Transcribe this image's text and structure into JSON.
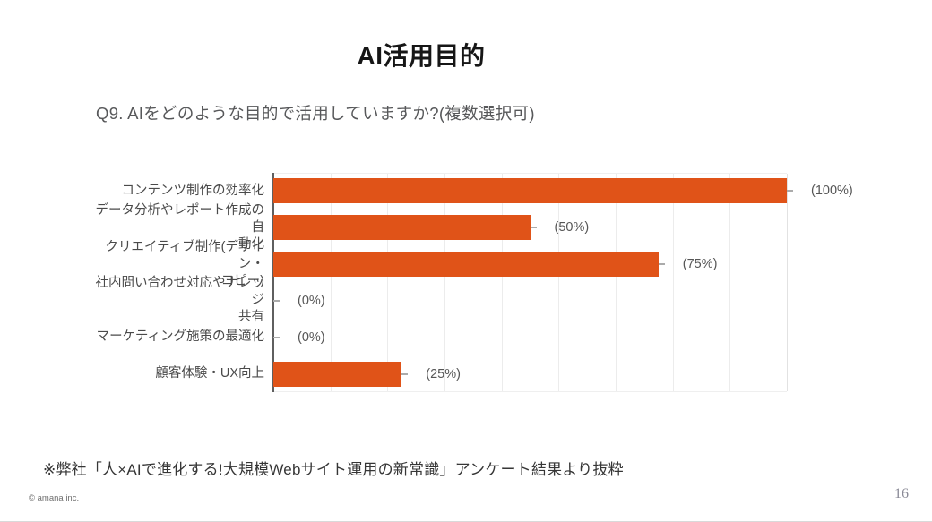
{
  "slide": {
    "title": "AI活用目的",
    "question": "Q9. AIをどのような目的で活用していますか?(複数選択可)",
    "footnote": "※弊社「人×AIで進化する!大規模Webサイト運用の新常識」アンケート結果より抜粋",
    "copyright": "© amana inc.",
    "page_number": "16"
  },
  "chart_data": {
    "type": "bar",
    "orientation": "horizontal",
    "title": "AI活用目的",
    "categories": [
      "コンテンツ制作の効率化",
      "データ分析やレポート作成の自動化",
      "クリエイティブ制作(デザイン・コピー)",
      "社内問い合わせ対応やナレッジ共有",
      "マーケティング施策の最適化",
      "顧客体験・UX向上"
    ],
    "category_display_lines": [
      "コンテンツ制作の効率化",
      "データ分析やレポート作成の自\n動化",
      "クリエイティブ制作(デザイン・\nコピー)",
      "社内問い合わせ対応やナレッジ\n共有",
      "マーケティング施策の最適化",
      "顧客体験・UX向上"
    ],
    "values": [
      100,
      50,
      75,
      0,
      0,
      25
    ],
    "value_labels": [
      "(100%)",
      "(50%)",
      "(75%)",
      "(0%)",
      "(0%)",
      "(25%)"
    ],
    "xlabel": "",
    "ylabel": "",
    "xlim": [
      0,
      100
    ],
    "grid": true,
    "gridline_divisions": 9,
    "legend": false,
    "bar_color": "#E05318",
    "axis_color": "#5F5F5F",
    "gridline_color": "#ECECEC"
  }
}
